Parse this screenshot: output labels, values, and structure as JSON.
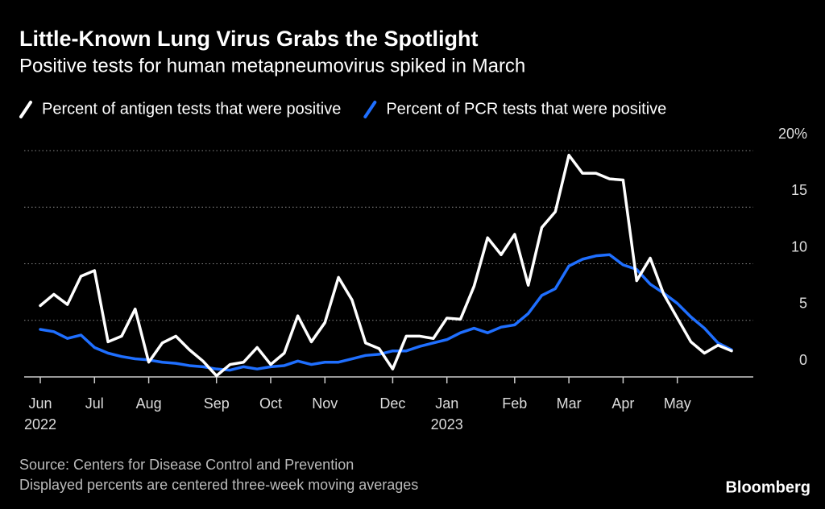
{
  "chart_data": {
    "type": "line",
    "title": "Little-Known Lung Virus Grabs the Spotlight",
    "subtitle": "Positive tests for human metapneumovirus spiked in March",
    "categories": [
      "Jun\n2022",
      null,
      null,
      null,
      "Jul",
      null,
      null,
      null,
      "Aug",
      null,
      null,
      null,
      null,
      "Sep",
      null,
      null,
      null,
      "Oct",
      null,
      null,
      null,
      "Nov",
      null,
      null,
      null,
      null,
      "Dec",
      null,
      null,
      null,
      "Jan\n2023",
      null,
      null,
      null,
      null,
      "Feb",
      null,
      null,
      null,
      "Mar",
      null,
      null,
      null,
      "Apr",
      null,
      null,
      null,
      "May",
      null,
      null,
      null,
      null
    ],
    "series": [
      {
        "name": "Percent of antigen tests that were positive",
        "color": "#ffffff",
        "values": [
          6.3,
          7.3,
          6.4,
          8.9,
          9.4,
          3.1,
          3.6,
          6.0,
          1.3,
          3.0,
          3.6,
          2.4,
          1.4,
          0.1,
          1.1,
          1.3,
          2.6,
          1.1,
          2.1,
          5.4,
          3.1,
          4.8,
          8.8,
          6.8,
          3.0,
          2.5,
          0.7,
          3.6,
          3.6,
          3.4,
          5.2,
          5.1,
          8.0,
          12.3,
          10.8,
          12.6,
          8.1,
          13.2,
          14.6,
          19.6,
          18.0,
          18.0,
          17.5,
          17.4,
          8.5,
          10.5,
          7.3,
          5.2,
          3.1,
          2.1,
          2.8,
          2.3
        ]
      },
      {
        "name": "Percent of PCR tests that were positive",
        "color": "#1f6fff",
        "values": [
          4.2,
          4.0,
          3.4,
          3.7,
          2.6,
          2.1,
          1.8,
          1.6,
          1.5,
          1.3,
          1.2,
          1.0,
          0.9,
          0.7,
          0.6,
          0.9,
          0.7,
          0.9,
          1.0,
          1.4,
          1.1,
          1.3,
          1.3,
          1.6,
          1.9,
          2.0,
          2.3,
          2.3,
          2.7,
          3.0,
          3.3,
          3.9,
          4.3,
          3.9,
          4.4,
          4.6,
          5.6,
          7.2,
          7.8,
          9.8,
          10.4,
          10.7,
          10.8,
          9.9,
          9.5,
          8.2,
          7.4,
          6.5,
          5.3,
          4.3,
          3.0,
          2.4
        ]
      }
    ],
    "ylim": [
      0,
      20
    ],
    "yticks": [
      0,
      5,
      10,
      15,
      {
        "value": 20,
        "label": "20%"
      }
    ],
    "grid": true,
    "source": "Source: Centers for Disease Control and Prevention",
    "note": "Displayed percents are centered three-week moving averages",
    "brand": "Bloomberg"
  }
}
